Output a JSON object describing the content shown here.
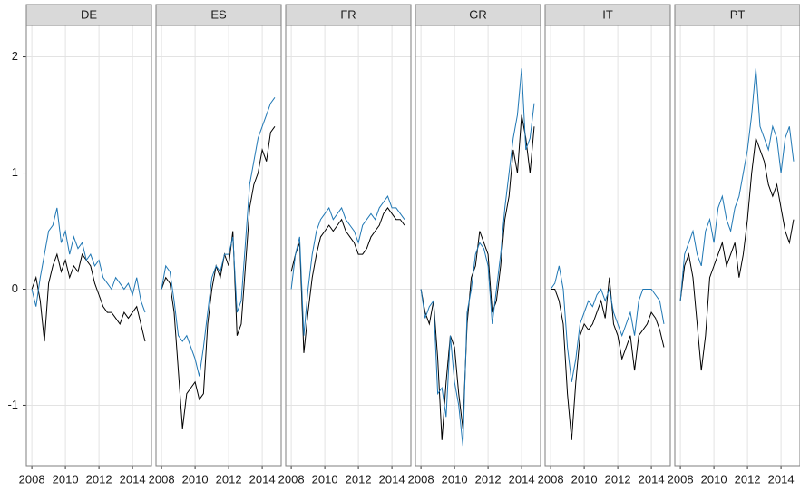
{
  "chart_data": [
    {
      "type": "line",
      "title": "DE",
      "x": [
        2008,
        2008.25,
        2008.5,
        2008.75,
        2009,
        2009.25,
        2009.5,
        2009.75,
        2010,
        2010.25,
        2010.5,
        2010.75,
        2011,
        2011.25,
        2011.5,
        2011.75,
        2012,
        2012.25,
        2012.5,
        2012.75,
        2013,
        2013.25,
        2013.5,
        2013.75,
        2014,
        2014.25,
        2014.5,
        2014.75
      ],
      "series": [
        {
          "color": "#000000",
          "values": [
            0,
            0.1,
            -0.1,
            -0.45,
            0.05,
            0.2,
            0.3,
            0.15,
            0.25,
            0.1,
            0.2,
            0.15,
            0.3,
            0.25,
            0.2,
            0.05,
            -0.05,
            -0.15,
            -0.2,
            -0.2,
            -0.25,
            -0.3,
            -0.2,
            -0.25,
            -0.2,
            -0.15,
            -0.3,
            -0.45
          ]
        },
        {
          "color": "#1f77b4",
          "values": [
            0,
            -0.15,
            0.1,
            0.3,
            0.5,
            0.55,
            0.7,
            0.4,
            0.5,
            0.3,
            0.45,
            0.35,
            0.4,
            0.25,
            0.3,
            0.2,
            0.25,
            0.1,
            0.05,
            0,
            0.1,
            0.05,
            0,
            0.05,
            -0.05,
            0.1,
            -0.1,
            -0.2
          ]
        }
      ],
      "xlim": [
        2007.67,
        2015.13
      ],
      "ylim": [
        -1.52,
        2.27
      ],
      "xticks": [
        2008,
        2010,
        2012,
        2014
      ],
      "yticks": [
        -1,
        0,
        1,
        2
      ]
    },
    {
      "type": "line",
      "title": "ES",
      "x": [
        2008,
        2008.25,
        2008.5,
        2008.75,
        2009,
        2009.25,
        2009.5,
        2009.75,
        2010,
        2010.25,
        2010.5,
        2010.75,
        2011,
        2011.25,
        2011.5,
        2011.75,
        2012,
        2012.25,
        2012.5,
        2012.75,
        2013,
        2013.25,
        2013.5,
        2013.75,
        2014,
        2014.25,
        2014.5,
        2014.75
      ],
      "series": [
        {
          "color": "#000000",
          "values": [
            0,
            0.1,
            0.05,
            -0.2,
            -0.7,
            -1.2,
            -0.9,
            -0.85,
            -0.8,
            -0.95,
            -0.9,
            -0.3,
            0,
            0.2,
            0.1,
            0.3,
            0.2,
            0.5,
            -0.4,
            -0.3,
            0.2,
            0.7,
            0.9,
            1.0,
            1.2,
            1.1,
            1.35,
            1.4
          ]
        },
        {
          "color": "#1f77b4",
          "values": [
            0,
            0.2,
            0.15,
            -0.1,
            -0.4,
            -0.45,
            -0.4,
            -0.5,
            -0.6,
            -0.75,
            -0.5,
            -0.2,
            0.1,
            0.2,
            0.15,
            0.3,
            0.3,
            0.45,
            -0.2,
            -0.1,
            0.4,
            0.9,
            1.1,
            1.3,
            1.4,
            1.5,
            1.6,
            1.65
          ]
        }
      ],
      "xlim": [
        2007.67,
        2015.13
      ],
      "ylim": [
        -1.52,
        2.27
      ],
      "xticks": [
        2008,
        2010,
        2012,
        2014
      ],
      "yticks": [
        -1,
        0,
        1,
        2
      ]
    },
    {
      "type": "line",
      "title": "FR",
      "x": [
        2008,
        2008.25,
        2008.5,
        2008.75,
        2009,
        2009.25,
        2009.5,
        2009.75,
        2010,
        2010.25,
        2010.5,
        2010.75,
        2011,
        2011.25,
        2011.5,
        2011.75,
        2012,
        2012.25,
        2012.5,
        2012.75,
        2013,
        2013.25,
        2013.5,
        2013.75,
        2014,
        2014.25,
        2014.5,
        2014.75
      ],
      "series": [
        {
          "color": "#000000",
          "values": [
            0.15,
            0.3,
            0.4,
            -0.55,
            -0.2,
            0.1,
            0.3,
            0.45,
            0.5,
            0.55,
            0.5,
            0.55,
            0.6,
            0.5,
            0.45,
            0.4,
            0.3,
            0.3,
            0.35,
            0.45,
            0.5,
            0.55,
            0.65,
            0.7,
            0.65,
            0.6,
            0.6,
            0.55
          ]
        },
        {
          "color": "#1f77b4",
          "values": [
            0,
            0.3,
            0.45,
            -0.4,
            0,
            0.3,
            0.5,
            0.6,
            0.65,
            0.7,
            0.6,
            0.65,
            0.7,
            0.6,
            0.55,
            0.5,
            0.4,
            0.55,
            0.6,
            0.65,
            0.6,
            0.7,
            0.75,
            0.8,
            0.7,
            0.7,
            0.65,
            0.6
          ]
        }
      ],
      "xlim": [
        2007.67,
        2015.13
      ],
      "ylim": [
        -1.52,
        2.27
      ],
      "xticks": [
        2008,
        2010,
        2012,
        2014
      ],
      "yticks": [
        -1,
        0,
        1,
        2
      ]
    },
    {
      "type": "line",
      "title": "GR",
      "x": [
        2008,
        2008.25,
        2008.5,
        2008.75,
        2009,
        2009.25,
        2009.5,
        2009.75,
        2010,
        2010.25,
        2010.5,
        2010.75,
        2011,
        2011.25,
        2011.5,
        2011.75,
        2012,
        2012.25,
        2012.5,
        2012.75,
        2013,
        2013.25,
        2013.5,
        2013.75,
        2014,
        2014.25,
        2014.5,
        2014.75
      ],
      "series": [
        {
          "color": "#000000",
          "values": [
            0,
            -0.2,
            -0.3,
            -0.1,
            -0.6,
            -1.3,
            -0.8,
            -0.4,
            -0.5,
            -0.9,
            -1.2,
            -0.3,
            0.1,
            0.2,
            0.5,
            0.4,
            0.3,
            -0.2,
            -0.1,
            0.2,
            0.6,
            0.8,
            1.2,
            1.0,
            1.5,
            1.3,
            1.0,
            1.4
          ]
        },
        {
          "color": "#1f77b4",
          "values": [
            0,
            -0.25,
            -0.15,
            -0.1,
            -0.9,
            -0.85,
            -1.1,
            -0.4,
            -0.8,
            -1.0,
            -1.35,
            -0.2,
            0,
            0.3,
            0.4,
            0.35,
            0.2,
            -0.3,
            0,
            0.3,
            0.7,
            1.0,
            1.3,
            1.5,
            1.9,
            1.2,
            1.3,
            1.6
          ]
        }
      ],
      "xlim": [
        2007.67,
        2015.13
      ],
      "ylim": [
        -1.52,
        2.27
      ],
      "xticks": [
        2008,
        2010,
        2012,
        2014
      ],
      "yticks": [
        -1,
        0,
        1,
        2
      ]
    },
    {
      "type": "line",
      "title": "IT",
      "x": [
        2008,
        2008.25,
        2008.5,
        2008.75,
        2009,
        2009.25,
        2009.5,
        2009.75,
        2010,
        2010.25,
        2010.5,
        2010.75,
        2011,
        2011.25,
        2011.5,
        2011.75,
        2012,
        2012.25,
        2012.5,
        2012.75,
        2013,
        2013.25,
        2013.5,
        2013.75,
        2014,
        2014.25,
        2014.5,
        2014.75
      ],
      "series": [
        {
          "color": "#000000",
          "values": [
            0,
            0,
            -0.1,
            -0.3,
            -0.9,
            -1.3,
            -0.8,
            -0.4,
            -0.3,
            -0.35,
            -0.3,
            -0.2,
            -0.1,
            -0.25,
            0.1,
            -0.3,
            -0.4,
            -0.6,
            -0.5,
            -0.4,
            -0.7,
            -0.4,
            -0.35,
            -0.3,
            -0.2,
            -0.25,
            -0.35,
            -0.5
          ]
        },
        {
          "color": "#1f77b4",
          "values": [
            0,
            0.05,
            0.2,
            0,
            -0.5,
            -0.8,
            -0.6,
            -0.3,
            -0.2,
            -0.1,
            -0.15,
            -0.05,
            0,
            -0.1,
            0,
            -0.2,
            -0.3,
            -0.4,
            -0.3,
            -0.2,
            -0.4,
            -0.1,
            0,
            0,
            0,
            -0.05,
            -0.1,
            -0.3
          ]
        }
      ],
      "xlim": [
        2007.67,
        2015.13
      ],
      "ylim": [
        -1.52,
        2.27
      ],
      "xticks": [
        2008,
        2010,
        2012,
        2014
      ],
      "yticks": [
        -1,
        0,
        1,
        2
      ]
    },
    {
      "type": "line",
      "title": "PT",
      "x": [
        2008,
        2008.25,
        2008.5,
        2008.75,
        2009,
        2009.25,
        2009.5,
        2009.75,
        2010,
        2010.25,
        2010.5,
        2010.75,
        2011,
        2011.25,
        2011.5,
        2011.75,
        2012,
        2012.25,
        2012.5,
        2012.75,
        2013,
        2013.25,
        2013.5,
        2013.75,
        2014,
        2014.25,
        2014.5,
        2014.75
      ],
      "series": [
        {
          "color": "#000000",
          "values": [
            -0.1,
            0.2,
            0.3,
            0.1,
            -0.3,
            -0.7,
            -0.4,
            0.1,
            0.2,
            0.3,
            0.4,
            0.2,
            0.3,
            0.4,
            0.1,
            0.3,
            0.6,
            1.0,
            1.3,
            1.2,
            1.1,
            0.9,
            0.8,
            0.9,
            0.7,
            0.5,
            0.4,
            0.6
          ]
        },
        {
          "color": "#1f77b4",
          "values": [
            -0.1,
            0.3,
            0.4,
            0.5,
            0.3,
            0.2,
            0.5,
            0.6,
            0.4,
            0.7,
            0.8,
            0.6,
            0.5,
            0.7,
            0.8,
            1.0,
            1.2,
            1.5,
            1.9,
            1.4,
            1.3,
            1.2,
            1.4,
            1.3,
            1.0,
            1.3,
            1.4,
            1.1
          ]
        }
      ],
      "xlim": [
        2007.67,
        2015.13
      ],
      "ylim": [
        -1.52,
        2.27
      ],
      "xticks": [
        2008,
        2010,
        2012,
        2014
      ],
      "yticks": [
        -1,
        0,
        1,
        2
      ]
    }
  ]
}
